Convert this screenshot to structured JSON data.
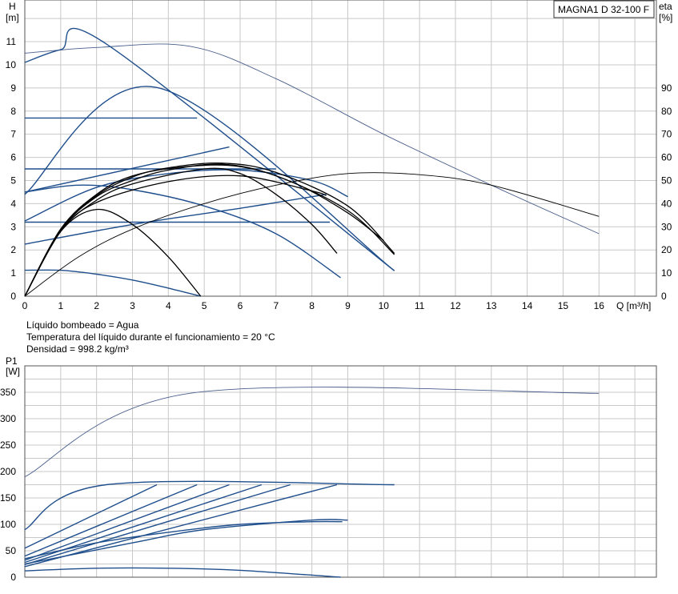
{
  "chart_data": [
    {
      "type": "line",
      "id": "head",
      "title": "MAGNA1 D 32-100 F",
      "ylabel_left": [
        "H",
        "[m]"
      ],
      "ylabel_right": [
        "eta",
        "[%]"
      ],
      "xlabel": "Q [m³/h]",
      "xlim": [
        0,
        17.6
      ],
      "ylim": [
        0,
        12.8
      ],
      "y2lim": [
        0,
        128
      ],
      "grid": true,
      "x_ticks": [
        0,
        1,
        2,
        3,
        4,
        5,
        6,
        7,
        8,
        9,
        10,
        11,
        12,
        13,
        14,
        15,
        16
      ],
      "y_ticks": [
        0,
        1,
        2,
        3,
        4,
        5,
        6,
        7,
        8,
        9,
        10,
        11
      ],
      "y2_ticks": [
        0,
        10,
        20,
        30,
        40,
        50,
        60,
        70,
        80,
        90
      ],
      "notes": [
        "Líquido bombeado = Agua",
        "Temperatura del líquido durante el funcionamiento = 20 °C",
        "Densidad = 998.2 kg/m³"
      ],
      "series": [
        {
          "color": "#4a5f8c",
          "width": 0.9,
          "points": [
            [
              0,
              10.5
            ],
            [
              2,
              10.75
            ],
            [
              4.6,
              10.8
            ],
            [
              7,
              9.4
            ],
            [
              10,
              7.0
            ],
            [
              13,
              4.8
            ],
            [
              16,
              2.7
            ]
          ]
        },
        {
          "color": "#1f4e8c",
          "width": 1.4,
          "points": [
            [
              0,
              10.1
            ],
            [
              1,
              10.65
            ],
            [
              2.27,
              10.9
            ],
            [
              10.3,
              1.1
            ]
          ]
        },
        {
          "color": "#1f4e8c",
          "width": 1.4,
          "points": [
            [
              0,
              4.4
            ],
            [
              3.68,
              9.02
            ],
            [
              10.3,
              1.1
            ]
          ]
        },
        {
          "color": "#1f4e8c",
          "width": 1.4,
          "points": [
            [
              0,
              7.7
            ],
            [
              4.8,
              7.7
            ]
          ]
        },
        {
          "color": "#1f4e8c",
          "width": 1.4,
          "points": [
            [
              0,
              4.5
            ],
            [
              5.7,
              6.45
            ]
          ]
        },
        {
          "color": "#1f4e8c",
          "width": 1.4,
          "points": [
            [
              0,
              5.5
            ],
            [
              7.0,
              5.5
            ]
          ]
        },
        {
          "color": "#1f4e8c",
          "width": 1.4,
          "points": [
            [
              0,
              3.25
            ],
            [
              2,
              4.7
            ],
            [
              4,
              5.3
            ],
            [
              6,
              5.45
            ],
            [
              8,
              5.0
            ],
            [
              9,
              4.3
            ]
          ]
        },
        {
          "color": "#1f4e8c",
          "width": 1.4,
          "points": [
            [
              0,
              2.25
            ],
            [
              3,
              3.1
            ],
            [
              6,
              3.8
            ],
            [
              8.4,
              4.4
            ]
          ]
        },
        {
          "color": "#1f4e8c",
          "width": 1.4,
          "points": [
            [
              0,
              3.2
            ],
            [
              8.5,
              3.2
            ]
          ]
        },
        {
          "color": "#1f4e8c",
          "width": 1.4,
          "points": [
            [
              0,
              4.5
            ],
            [
              1.5,
              4.8
            ],
            [
              3,
              4.6
            ],
            [
              5,
              3.9
            ],
            [
              7,
              2.7
            ],
            [
              8.8,
              0.8
            ]
          ]
        },
        {
          "color": "#1f4e8c",
          "width": 1.4,
          "points": [
            [
              0,
              1.12
            ],
            [
              1,
              1.12
            ],
            [
              2,
              0.95
            ],
            [
              3,
              0.7
            ],
            [
              4,
              0.35
            ],
            [
              4.9,
              0
            ]
          ]
        },
        {
          "color": "#000000",
          "width": 0.9,
          "points": [
            [
              0,
              0
            ],
            [
              1.5,
              1.7
            ],
            [
              3,
              2.9
            ],
            [
              5,
              4.0
            ],
            [
              7,
              4.8
            ],
            [
              9,
              5.3
            ],
            [
              11,
              5.25
            ],
            [
              13,
              4.8
            ],
            [
              16,
              3.45
            ]
          ]
        },
        {
          "color": "#000000",
          "width": 1.3,
          "points": [
            [
              0,
              0
            ],
            [
              1,
              2.8
            ],
            [
              2,
              3.75
            ],
            [
              3,
              3.1
            ],
            [
              4,
              1.7
            ],
            [
              4.9,
              0
            ]
          ]
        },
        {
          "color": "#000000",
          "width": 1.3,
          "points": [
            [
              0,
              0
            ],
            [
              1,
              2.8
            ],
            [
              2,
              4.05
            ],
            [
              4,
              4.95
            ],
            [
              6,
              5.2
            ],
            [
              8,
              4.55
            ],
            [
              8.4,
              4.35
            ]
          ]
        },
        {
          "color": "#000000",
          "width": 1.3,
          "points": [
            [
              0,
              0
            ],
            [
              1,
              2.8
            ],
            [
              2,
              4.15
            ],
            [
              3,
              4.85
            ],
            [
              5,
              5.5
            ],
            [
              6,
              5.3
            ],
            [
              7,
              4.4
            ],
            [
              8,
              3.1
            ],
            [
              8.7,
              1.85
            ]
          ]
        },
        {
          "color": "#000000",
          "width": 1.3,
          "points": [
            [
              0,
              0
            ],
            [
              1,
              2.85
            ],
            [
              2,
              4.3
            ],
            [
              3,
              5.0
            ],
            [
              4,
              5.45
            ],
            [
              5.5,
              5.7
            ],
            [
              7,
              5.2
            ],
            [
              9,
              3.7
            ],
            [
              10.3,
              1.8
            ]
          ]
        },
        {
          "color": "#000000",
          "width": 1.3,
          "points": [
            [
              0,
              0
            ],
            [
              1,
              2.9
            ],
            [
              2,
              4.35
            ],
            [
              3,
              5.15
            ],
            [
              4,
              5.55
            ],
            [
              5.5,
              5.75
            ],
            [
              7,
              5.35
            ],
            [
              9,
              3.9
            ],
            [
              10.3,
              1.85
            ]
          ]
        },
        {
          "color": "#000000",
          "width": 1.3,
          "points": [
            [
              0,
              0
            ],
            [
              1,
              2.9
            ],
            [
              2,
              4.4
            ],
            [
              3,
              5.2
            ],
            [
              4.5,
              5.6
            ],
            [
              6,
              5.6
            ],
            [
              7.5,
              4.9
            ],
            [
              9,
              3.6
            ],
            [
              10,
              2.4
            ]
          ]
        }
      ]
    },
    {
      "type": "line",
      "id": "power",
      "ylabel_left": [
        "P1",
        "[W]"
      ],
      "xlim": [
        0,
        17.6
      ],
      "ylim": [
        0,
        400
      ],
      "grid": true,
      "y_ticks": [
        0,
        50,
        100,
        150,
        200,
        250,
        300,
        350
      ],
      "series": [
        {
          "color": "#4a5f8c",
          "width": 0.9,
          "points": [
            [
              0,
              190
            ],
            [
              4.6,
              348
            ],
            [
              16,
              348
            ]
          ]
        },
        {
          "color": "#1f4e8c",
          "width": 1.4,
          "points": [
            [
              0,
              90
            ],
            [
              2.27,
              175
            ],
            [
              10.3,
              175
            ]
          ]
        },
        {
          "color": "#1f4e8c",
          "width": 1.4,
          "points": [
            [
              0,
              55
            ],
            [
              3.68,
              175
            ]
          ]
        },
        {
          "color": "#1f4e8c",
          "width": 1.4,
          "points": [
            [
              0,
              40
            ],
            [
              4.8,
              175
            ]
          ]
        },
        {
          "color": "#1f4e8c",
          "width": 1.4,
          "points": [
            [
              0,
              32
            ],
            [
              5.7,
              175
            ]
          ]
        },
        {
          "color": "#1f4e8c",
          "width": 1.4,
          "points": [
            [
              0,
              28
            ],
            [
              6.6,
              175
            ]
          ]
        },
        {
          "color": "#1f4e8c",
          "width": 1.4,
          "points": [
            [
              0,
              24
            ],
            [
              7.4,
              175
            ]
          ]
        },
        {
          "color": "#1f4e8c",
          "width": 1.4,
          "points": [
            [
              0,
              20
            ],
            [
              8.7,
              175
            ]
          ]
        },
        {
          "color": "#1f4e8c",
          "width": 1.4,
          "points": [
            [
              0,
              35
            ],
            [
              2,
              65
            ],
            [
              4,
              85
            ],
            [
              6,
              100
            ],
            [
              8,
              105
            ],
            [
              8.85,
              105
            ]
          ]
        },
        {
          "color": "#1f4e8c",
          "width": 1.4,
          "points": [
            [
              0,
              25
            ],
            [
              3,
              65
            ],
            [
              5,
              90
            ],
            [
              8,
              108
            ],
            [
              9,
              108
            ]
          ]
        },
        {
          "color": "#1f4e8c",
          "width": 1.4,
          "points": [
            [
              0,
              12
            ],
            [
              2,
              17
            ],
            [
              4,
              17
            ],
            [
              6,
              13
            ],
            [
              8.8,
              0
            ]
          ]
        }
      ]
    }
  ]
}
